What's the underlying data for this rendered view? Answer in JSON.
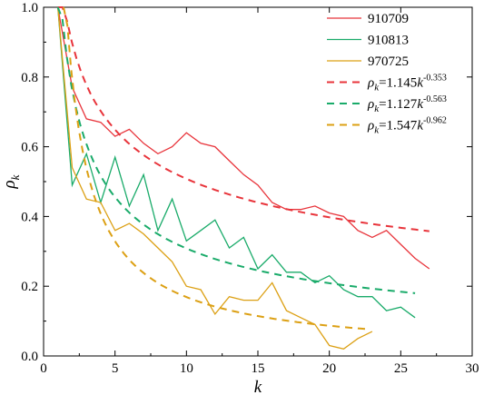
{
  "chart_data": {
    "type": "line",
    "xlabel": "k",
    "ylabel": "ρk",
    "xlim": [
      0,
      30
    ],
    "ylim": [
      0,
      1.0
    ],
    "xticks": [
      0,
      5,
      10,
      15,
      20,
      25,
      30
    ],
    "yticks": [
      0.0,
      0.2,
      0.4,
      0.6,
      0.8,
      1.0
    ],
    "x_tick_labels": [
      "0",
      "5",
      "10",
      "15",
      "20",
      "25",
      "30"
    ],
    "y_tick_labels": [
      "0.0",
      "0.2",
      "0.4",
      "0.6",
      "0.8",
      "1.0"
    ],
    "grid": false,
    "legend_position": "top-right",
    "series": [
      {
        "name": "910709",
        "style": "solid",
        "color": "#e8343b",
        "x": [
          1,
          2,
          3,
          4,
          5,
          6,
          7,
          8,
          9,
          10,
          11,
          12,
          13,
          14,
          15,
          16,
          17,
          18,
          19,
          20,
          21,
          22,
          23,
          24,
          25,
          26,
          27
        ],
        "y": [
          1.0,
          0.77,
          0.68,
          0.67,
          0.63,
          0.65,
          0.61,
          0.58,
          0.6,
          0.64,
          0.61,
          0.6,
          0.56,
          0.52,
          0.49,
          0.44,
          0.42,
          0.42,
          0.43,
          0.41,
          0.4,
          0.36,
          0.34,
          0.36,
          0.32,
          0.28,
          0.25
        ]
      },
      {
        "name": "910813",
        "style": "solid",
        "color": "#1aab6a",
        "x": [
          1,
          2,
          3,
          4,
          5,
          6,
          7,
          8,
          9,
          10,
          11,
          12,
          13,
          14,
          15,
          16,
          17,
          18,
          19,
          20,
          21,
          22,
          23,
          24,
          25,
          26
        ],
        "y": [
          1.0,
          0.49,
          0.58,
          0.44,
          0.57,
          0.43,
          0.52,
          0.36,
          0.45,
          0.33,
          0.36,
          0.39,
          0.31,
          0.34,
          0.25,
          0.29,
          0.24,
          0.24,
          0.21,
          0.23,
          0.19,
          0.17,
          0.17,
          0.13,
          0.14,
          0.11
        ]
      },
      {
        "name": "970725",
        "style": "solid",
        "color": "#dca014",
        "x": [
          1,
          2,
          3,
          4,
          5,
          6,
          7,
          8,
          9,
          10,
          11,
          12,
          13,
          14,
          15,
          16,
          17,
          18,
          19,
          20,
          21,
          22,
          23
        ],
        "y": [
          1.0,
          0.54,
          0.45,
          0.44,
          0.36,
          0.38,
          0.35,
          0.31,
          0.27,
          0.2,
          0.19,
          0.12,
          0.17,
          0.16,
          0.16,
          0.21,
          0.13,
          0.11,
          0.09,
          0.03,
          0.02,
          0.05,
          0.07
        ]
      },
      {
        "name": "ρk=1.145k^-0.353",
        "label_parts": {
          "rho": "ρ",
          "sub": "k",
          "eq": "=1.145",
          "base": "k",
          "exp": "-0.353"
        },
        "style": "dashed",
        "color": "#e8343b",
        "fit": {
          "a": 1.145,
          "b": -0.353,
          "x_from": 1,
          "x_to": 27
        }
      },
      {
        "name": "ρk=1.127k^-0.563",
        "label_parts": {
          "rho": "ρ",
          "sub": "k",
          "eq": "=1.127",
          "base": "k",
          "exp": "-0.563"
        },
        "style": "dashed",
        "color": "#1aab6a",
        "fit": {
          "a": 1.127,
          "b": -0.563,
          "x_from": 1,
          "x_to": 26
        }
      },
      {
        "name": "ρk=1.547k^-0.962",
        "label_parts": {
          "rho": "ρ",
          "sub": "k",
          "eq": "=1.547",
          "base": "k",
          "exp": "-0.962"
        },
        "style": "dashed",
        "color": "#dca014",
        "fit": {
          "a": 1.547,
          "b": -0.962,
          "x_from": 1.4,
          "x_to": 22.5
        }
      }
    ]
  }
}
